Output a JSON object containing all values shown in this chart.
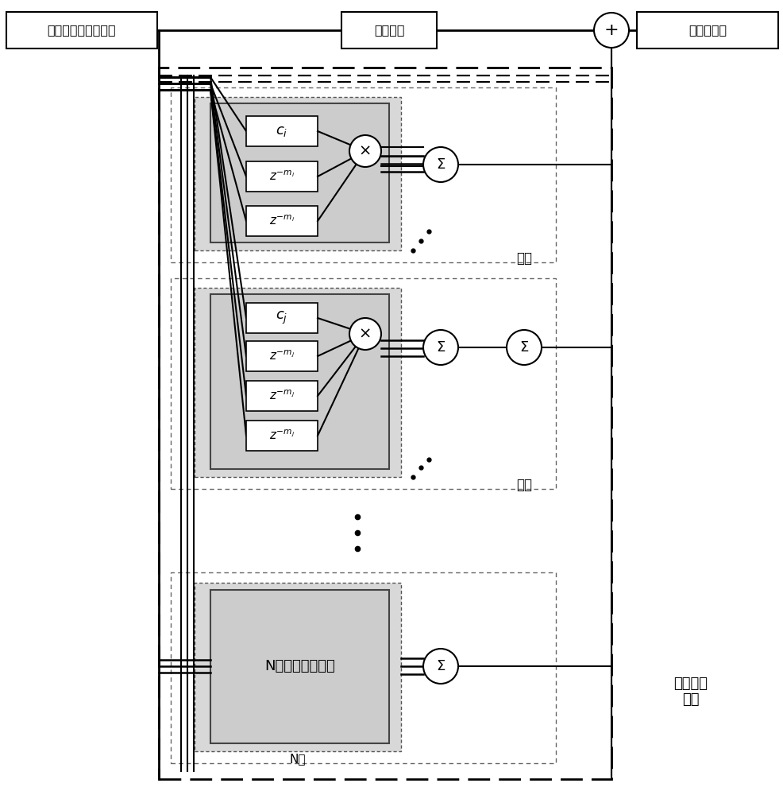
{
  "bg_color": "#ffffff",
  "top_labels": {
    "input": "非线性系统输出信号",
    "delay": "可选延时",
    "output": "校正后信号"
  },
  "stage_labels": {
    "stage2": "二阶",
    "stage3": "三阶",
    "stageN": "N阶"
  },
  "N_label": "N阶非线性组合项",
  "bottom_label": "生成抗消\n信号",
  "ci_label": "$c_i$",
  "cj_label": "$c_j$",
  "zmi1": "$z^{-m_i}$",
  "zmi2": "$z^{-m_i}$",
  "zmj1": "$z^{-m_j}$",
  "zmj2": "$z^{-m_j}$",
  "zmj3": "$z^{-m_j}$"
}
